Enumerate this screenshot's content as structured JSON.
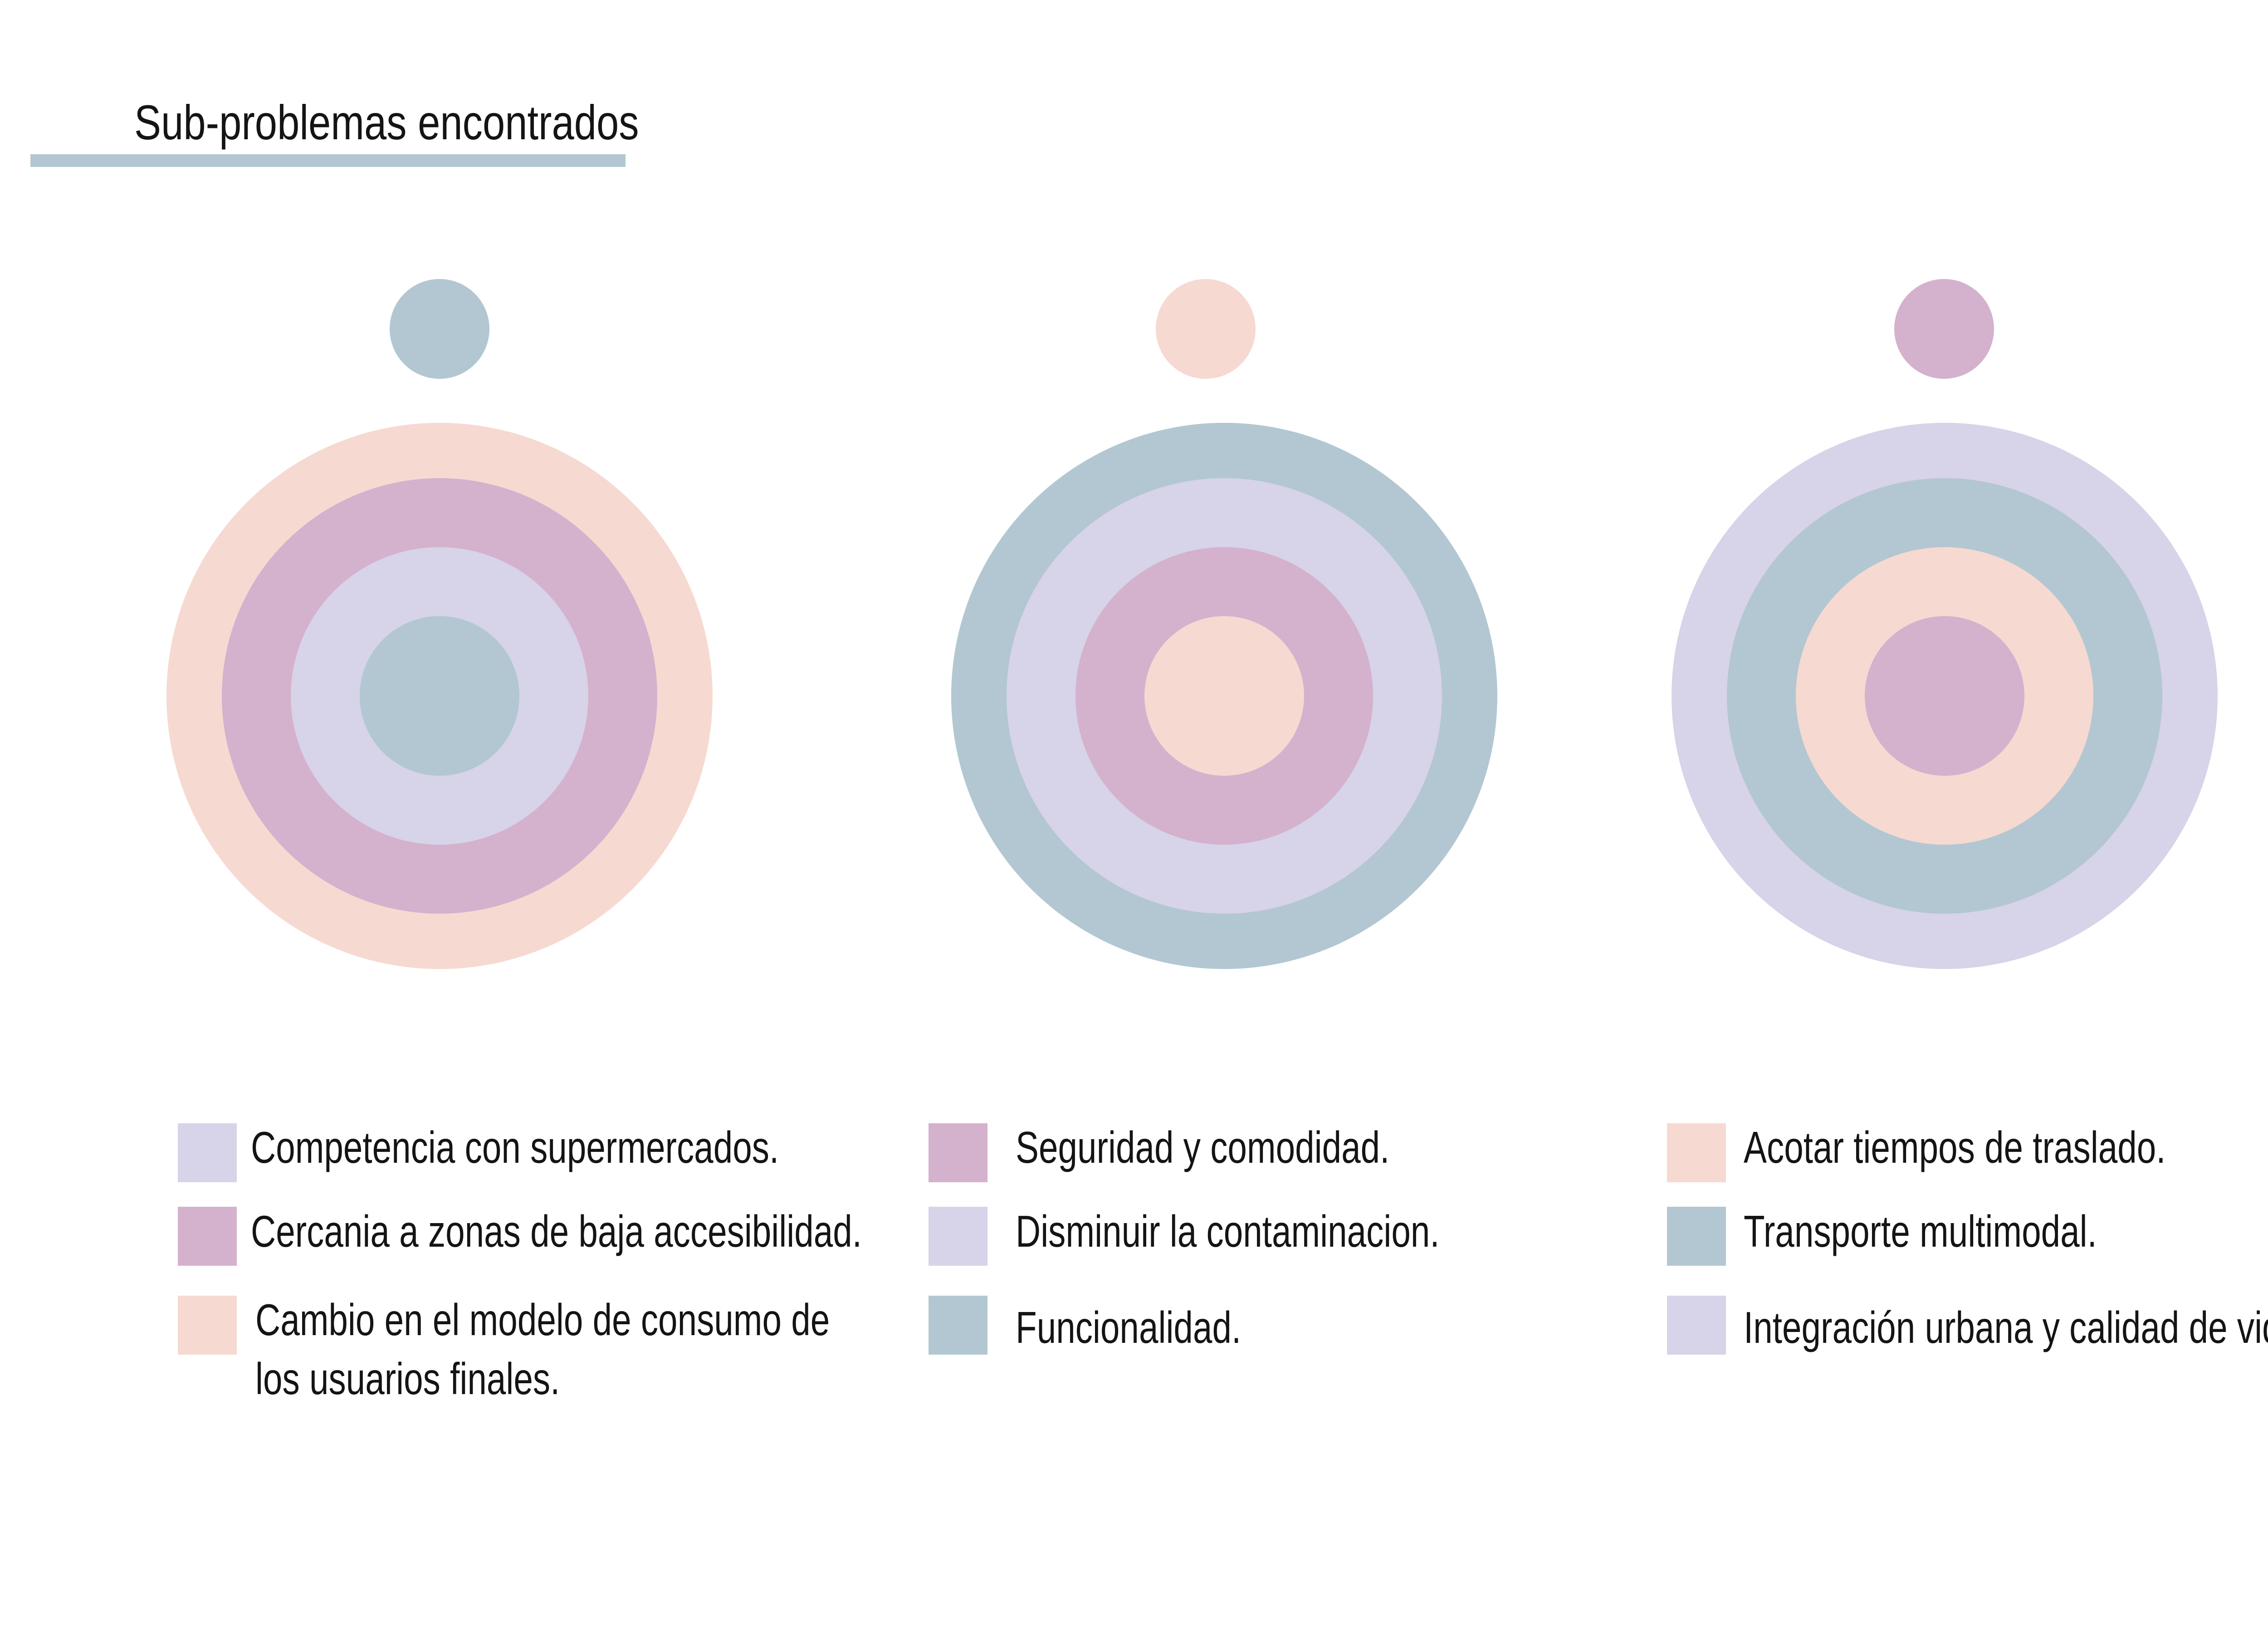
{
  "title": "Sub-problemas encontrados",
  "colors": {
    "blue": "#b2c7d1",
    "peach": "#f6d9d1",
    "mauve": "#d4b1cd",
    "lavender": "#d7d3e8",
    "underline": "#b2c7d1"
  },
  "diagrams": [
    {
      "top_dot": "blue",
      "rings_outer_to_inner": [
        "peach",
        "mauve",
        "lavender",
        "blue"
      ],
      "legend": [
        {
          "color": "lavender",
          "label": "Competencia con supermercados."
        },
        {
          "color": "mauve",
          "label": "Cercania a zonas de baja accesibilidad."
        },
        {
          "color": "peach",
          "label_lines": [
            "Cambio en el modelo de consumo de",
            "los usuarios finales."
          ]
        }
      ]
    },
    {
      "top_dot": "peach",
      "rings_outer_to_inner": [
        "blue",
        "lavender",
        "mauve",
        "peach"
      ],
      "legend": [
        {
          "color": "mauve",
          "label": "Seguridad y comodidad."
        },
        {
          "color": "lavender",
          "label": "Disminuir la contaminacion."
        },
        {
          "color": "blue",
          "label": "Funcionalidad."
        }
      ]
    },
    {
      "top_dot": "mauve",
      "rings_outer_to_inner": [
        "lavender",
        "blue",
        "peach",
        "mauve"
      ],
      "legend": [
        {
          "color": "peach",
          "label": "Acotar tiempos de traslado."
        },
        {
          "color": "blue",
          "label": "Transporte multimodal."
        },
        {
          "color": "lavender",
          "label": "Integración urbana y calidad de vida"
        }
      ]
    }
  ]
}
